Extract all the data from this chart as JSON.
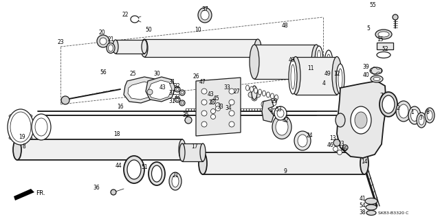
{
  "bg_color": "#ffffff",
  "diagram_code": "SK83-B3320 C",
  "fig_width": 6.4,
  "fig_height": 3.19,
  "dpi": 100,
  "line_color": "#1a1a1a",
  "gray1": "#888888",
  "gray2": "#555555",
  "gray3": "#aaaaaa"
}
